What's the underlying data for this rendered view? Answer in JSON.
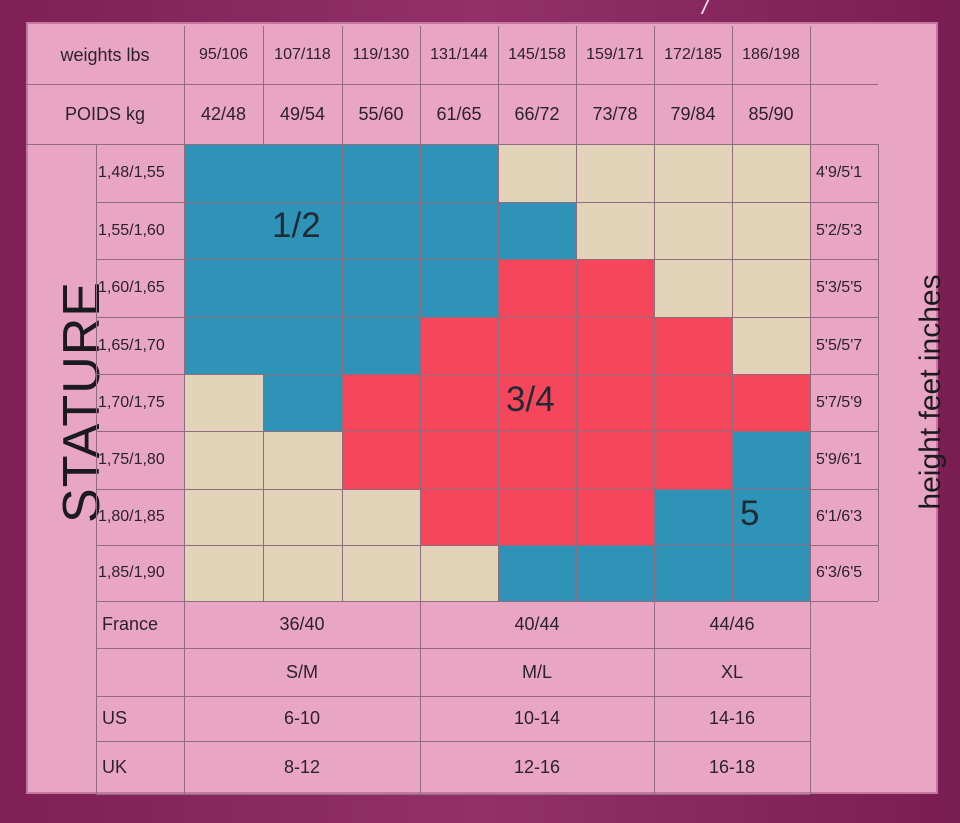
{
  "header": {
    "weights_label": "weights lbs",
    "weights": [
      "95/106",
      "107/118",
      "119/130",
      "131/144",
      "145/158",
      "159/171",
      "172/185",
      "186/198"
    ],
    "poids_label": "POIDS kg",
    "poids": [
      "42/48",
      "49/54",
      "55/60",
      "61/65",
      "66/72",
      "73/78",
      "79/84",
      "85/90"
    ]
  },
  "stature": {
    "label": "STATURE",
    "metric": [
      "1,48/1,55",
      "1,55/1,60",
      "1,60/1,65",
      "1,65/1,70",
      "1,70/1,75",
      "1,75/1,80",
      "1,80/1,85",
      "1,85/1,90"
    ]
  },
  "height_feet": {
    "label": "height feet inches",
    "values": [
      "4'9/5'1",
      "5'2/5'3",
      "5'3/5'5",
      "5'5/5'7",
      "5'7/5'9",
      "5'9/6'1",
      "6'1/6'3",
      "6'3/6'5"
    ]
  },
  "size_grid": {
    "rows": [
      [
        "1/2",
        "1/2",
        "1/2",
        "1/2",
        "none",
        "none",
        "none",
        "none"
      ],
      [
        "1/2",
        "1/2",
        "1/2",
        "1/2",
        "1/2",
        "none",
        "none",
        "none"
      ],
      [
        "1/2",
        "1/2",
        "1/2",
        "1/2",
        "3/4",
        "3/4",
        "none",
        "none"
      ],
      [
        "1/2",
        "1/2",
        "1/2",
        "3/4",
        "3/4",
        "3/4",
        "3/4",
        "none"
      ],
      [
        "none",
        "1/2",
        "3/4",
        "3/4",
        "3/4",
        "3/4",
        "3/4",
        "3/4"
      ],
      [
        "none",
        "none",
        "3/4",
        "3/4",
        "3/4",
        "3/4",
        "3/4",
        "5"
      ],
      [
        "none",
        "none",
        "none",
        "3/4",
        "3/4",
        "3/4",
        "5",
        "5"
      ],
      [
        "none",
        "none",
        "none",
        "none",
        "5",
        "5",
        "5",
        "5"
      ]
    ],
    "labels": {
      "small": "1/2",
      "medium": "3/4",
      "large": "5"
    },
    "colors": {
      "1/2": "#2e93b7",
      "3/4": "#f6465c",
      "5": "#2e93b7",
      "none": "#e2d2b8"
    }
  },
  "sizes_table": {
    "france": {
      "label": "France",
      "values": [
        "36/40",
        "40/44",
        "44/46"
      ]
    },
    "letters": {
      "values": [
        "S/M",
        "M/L",
        "XL"
      ]
    },
    "us": {
      "label": "US",
      "values": [
        "6-10",
        "10-14",
        "14-16"
      ]
    },
    "uk": {
      "label": "UK",
      "values": [
        "8-12",
        "12-16",
        "16-18"
      ]
    }
  }
}
